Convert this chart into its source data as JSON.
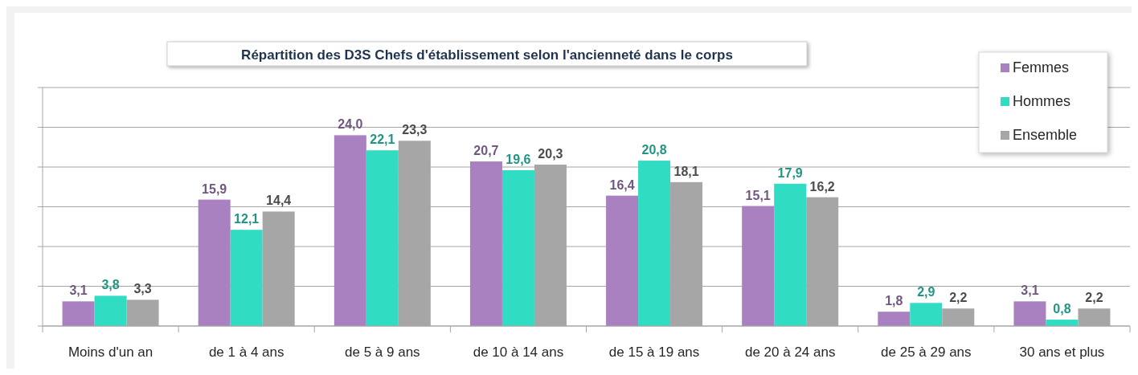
{
  "chart_data": {
    "type": "bar",
    "title": "Répartition des D3S Chefs d'établissement selon l'ancienneté dans le corps",
    "categories": [
      "Moins d'un an",
      "de 1 à 4 ans",
      "de 5 à 9 ans",
      "de 10 à 14 ans",
      "de 15 à 19 ans",
      "de 20 à 24 ans",
      "de 25 à 29 ans",
      "30 ans et plus"
    ],
    "series": [
      {
        "name": "Femmes",
        "color": "#a981c1",
        "values": [
          3.1,
          15.9,
          24.0,
          20.7,
          16.4,
          15.1,
          1.8,
          3.1
        ],
        "value_labels": [
          "3,1",
          "15,9",
          "24,0",
          "20,7",
          "16,4",
          "15,1",
          "1,8",
          "3,1"
        ]
      },
      {
        "name": "Hommes",
        "color": "#30dcc2",
        "values": [
          3.8,
          12.1,
          22.1,
          19.6,
          20.8,
          17.9,
          2.9,
          0.8
        ],
        "value_labels": [
          "3,8",
          "12,1",
          "22,1",
          "19,6",
          "20,8",
          "17,9",
          "2,9",
          "0,8"
        ]
      },
      {
        "name": "Ensemble",
        "color": "#a6a6a6",
        "values": [
          3.3,
          14.4,
          23.3,
          20.3,
          18.1,
          16.2,
          2.2,
          2.2
        ],
        "value_labels": [
          "3,3",
          "14,4",
          "23,3",
          "20,3",
          "18,1",
          "16,2",
          "2,2",
          "2,2"
        ]
      }
    ],
    "tick_labels": "x",
    "grid": "y",
    "legend": "top right"
  }
}
